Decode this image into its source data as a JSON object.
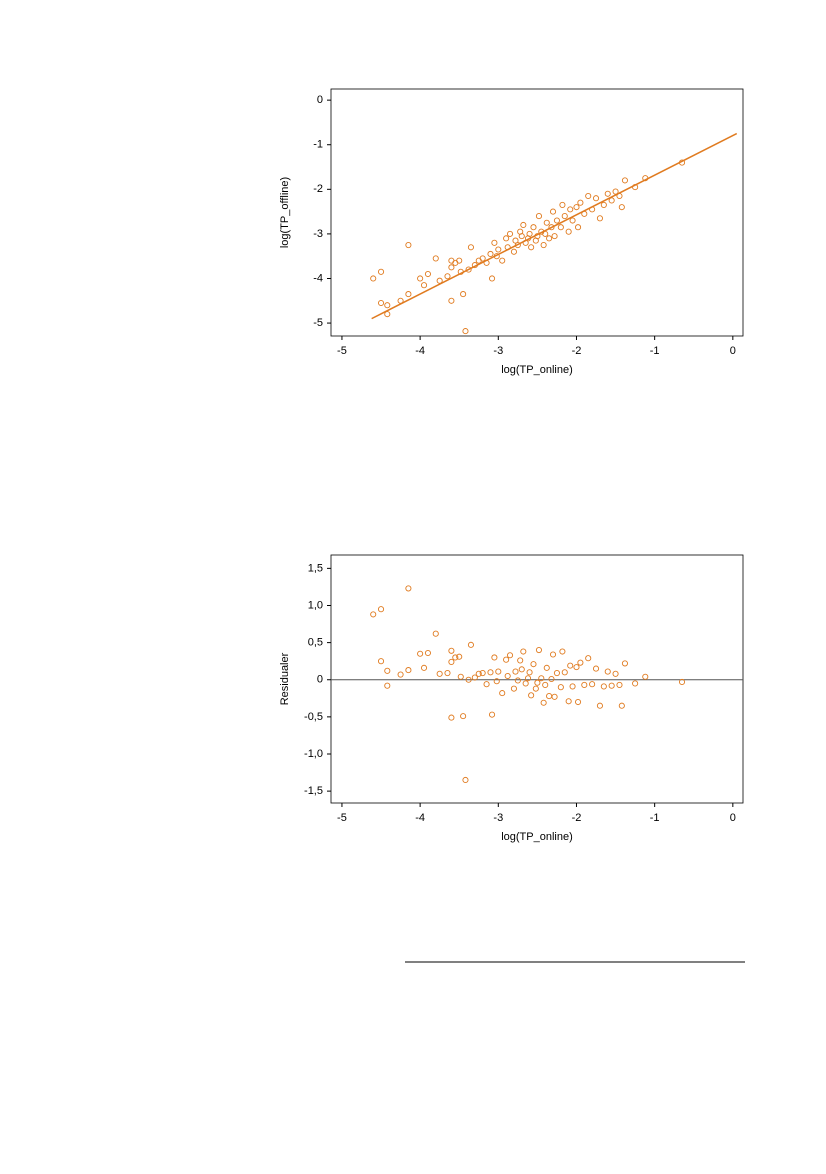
{
  "chart_data": [
    {
      "type": "scatter",
      "xlabel": "log(TP_online)",
      "ylabel": "log(TP_offline)",
      "color": "#e07b20",
      "xlim": [
        -5.14,
        0.13
      ],
      "ylim": [
        -5.29,
        0.25
      ],
      "xticks": [
        -5,
        -4,
        -3,
        -2,
        -1,
        0
      ],
      "yticks": [
        0,
        -1,
        -2,
        -3,
        -4,
        -5
      ],
      "x": [
        -4.6,
        -4.5,
        -4.5,
        -4.42,
        -4.42,
        -4.25,
        -4.15,
        -4.15,
        -4.0,
        -3.95,
        -3.9,
        -3.8,
        -3.75,
        -3.65,
        -3.6,
        -3.6,
        -3.6,
        -3.55,
        -3.5,
        -3.48,
        -3.45,
        -3.42,
        -3.38,
        -3.35,
        -3.3,
        -3.25,
        -3.2,
        -3.15,
        -3.1,
        -3.08,
        -3.05,
        -3.02,
        -3.0,
        -2.95,
        -2.9,
        -2.88,
        -2.85,
        -2.8,
        -2.78,
        -2.75,
        -2.72,
        -2.7,
        -2.68,
        -2.65,
        -2.62,
        -2.6,
        -2.58,
        -2.55,
        -2.52,
        -2.5,
        -2.48,
        -2.45,
        -2.42,
        -2.4,
        -2.38,
        -2.35,
        -2.32,
        -2.3,
        -2.28,
        -2.25,
        -2.2,
        -2.18,
        -2.15,
        -2.1,
        -2.08,
        -2.05,
        -2.0,
        -1.98,
        -1.95,
        -1.9,
        -1.85,
        -1.8,
        -1.75,
        -1.7,
        -1.65,
        -1.6,
        -1.55,
        -1.5,
        -1.45,
        -1.42,
        -1.38,
        -1.25,
        -1.12,
        -0.65
      ],
      "y": [
        -4.0,
        -3.85,
        -4.55,
        -4.6,
        -4.8,
        -4.5,
        -3.25,
        -4.35,
        -4.0,
        -4.15,
        -3.9,
        -3.55,
        -4.05,
        -3.95,
        -3.6,
        -3.75,
        -4.5,
        -3.65,
        -3.6,
        -3.85,
        -4.35,
        -5.18,
        -3.8,
        -3.3,
        -3.7,
        -3.6,
        -3.55,
        -3.65,
        -3.45,
        -4.0,
        -3.2,
        -3.5,
        -3.35,
        -3.6,
        -3.1,
        -3.3,
        -3.0,
        -3.4,
        -3.15,
        -3.25,
        -2.95,
        -3.05,
        -2.8,
        -3.2,
        -3.1,
        -3.0,
        -3.3,
        -2.85,
        -3.15,
        -3.05,
        -2.6,
        -2.95,
        -3.25,
        -3.0,
        -2.75,
        -3.1,
        -2.85,
        -2.5,
        -3.05,
        -2.7,
        -2.85,
        -2.35,
        -2.6,
        -2.95,
        -2.45,
        -2.7,
        -2.4,
        -2.85,
        -2.3,
        -2.55,
        -2.15,
        -2.45,
        -2.2,
        -2.65,
        -2.35,
        -2.1,
        -2.25,
        -2.05,
        -2.15,
        -2.4,
        -1.8,
        -1.95,
        -1.75,
        -1.4
      ],
      "fit_line": {
        "x": [
          -4.62,
          0.05
        ],
        "y": [
          -4.9,
          -0.75
        ]
      }
    },
    {
      "type": "scatter",
      "xlabel": "log(TP_online)",
      "ylabel": "Residualer",
      "color": "#e07b20",
      "xlim": [
        -5.14,
        0.13
      ],
      "ylim": [
        -1.66,
        1.68
      ],
      "xticks": [
        -5,
        -4,
        -3,
        -2,
        -1,
        0
      ],
      "yticks": [
        {
          "value": 1.5,
          "label": "1,5"
        },
        {
          "value": 1,
          "label": "1,0"
        },
        {
          "value": 0.5,
          "label": "0,5"
        },
        0,
        {
          "value": -0.5,
          "label": "-0,5"
        },
        {
          "value": -1,
          "label": "-1,0"
        },
        {
          "value": -1.5,
          "label": "-1,5"
        }
      ],
      "hline": 0,
      "x": [
        -4.6,
        -4.5,
        -4.5,
        -4.42,
        -4.42,
        -4.25,
        -4.15,
        -4.15,
        -4.0,
        -3.95,
        -3.9,
        -3.8,
        -3.75,
        -3.65,
        -3.6,
        -3.6,
        -3.6,
        -3.55,
        -3.5,
        -3.48,
        -3.45,
        -3.42,
        -3.38,
        -3.35,
        -3.3,
        -3.25,
        -3.2,
        -3.15,
        -3.1,
        -3.08,
        -3.05,
        -3.02,
        -3.0,
        -2.95,
        -2.9,
        -2.88,
        -2.85,
        -2.8,
        -2.78,
        -2.75,
        -2.72,
        -2.7,
        -2.68,
        -2.65,
        -2.62,
        -2.6,
        -2.58,
        -2.55,
        -2.52,
        -2.5,
        -2.48,
        -2.45,
        -2.42,
        -2.4,
        -2.38,
        -2.35,
        -2.32,
        -2.3,
        -2.28,
        -2.25,
        -2.2,
        -2.18,
        -2.15,
        -2.1,
        -2.08,
        -2.05,
        -2.0,
        -1.98,
        -1.95,
        -1.9,
        -1.85,
        -1.8,
        -1.75,
        -1.7,
        -1.65,
        -1.6,
        -1.55,
        -1.5,
        -1.45,
        -1.42,
        -1.38,
        -1.25,
        -1.12,
        -0.65
      ],
      "y": [
        0.88,
        0.95,
        0.25,
        0.12,
        -0.08,
        0.07,
        1.23,
        0.13,
        0.35,
        0.16,
        0.36,
        0.62,
        0.08,
        0.09,
        0.39,
        0.24,
        -0.51,
        0.3,
        0.31,
        0.04,
        -0.49,
        -1.35,
        0.0,
        0.47,
        0.03,
        0.08,
        0.09,
        -0.06,
        0.1,
        -0.47,
        0.3,
        -0.02,
        0.11,
        -0.18,
        0.27,
        0.05,
        0.33,
        -0.12,
        0.11,
        -0.01,
        0.26,
        0.14,
        0.38,
        -0.05,
        0.02,
        0.1,
        -0.21,
        0.21,
        -0.12,
        -0.04,
        0.4,
        0.02,
        -0.31,
        -0.07,
        0.16,
        -0.22,
        0.01,
        0.34,
        -0.23,
        0.09,
        -0.1,
        0.38,
        0.1,
        -0.29,
        0.19,
        -0.09,
        0.17,
        -0.3,
        0.23,
        -0.07,
        0.29,
        -0.06,
        0.15,
        -0.35,
        -0.09,
        0.11,
        -0.08,
        0.08,
        -0.07,
        -0.35,
        0.22,
        -0.05,
        0.04,
        -0.03
      ]
    }
  ]
}
